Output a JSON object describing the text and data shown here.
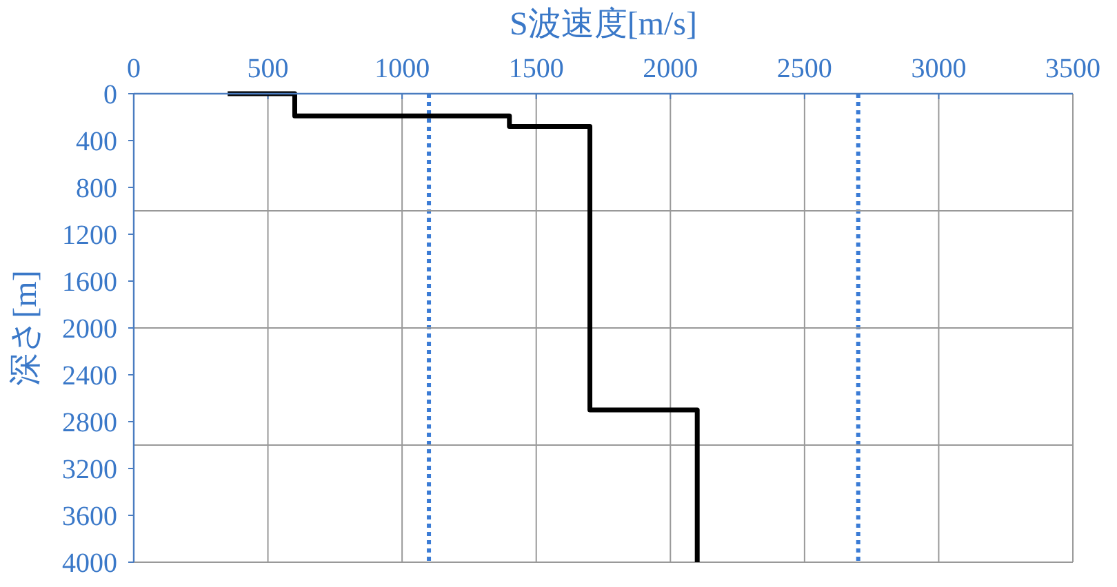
{
  "chart_data": {
    "type": "line",
    "xlabel": "S波速度[m/s]",
    "ylabel": "深さ[m]",
    "xlim": [
      0,
      3500
    ],
    "xticks": [
      0,
      500,
      1000,
      1500,
      2000,
      2500,
      3000,
      3500
    ],
    "ylim": [
      4000,
      0
    ],
    "yticks": [
      0,
      400,
      800,
      1200,
      1600,
      2000,
      2400,
      2800,
      3200,
      3600,
      4000
    ],
    "grid": "x",
    "marker": "none",
    "line_style": "solid",
    "series": [
      {
        "x": [
          350,
          600,
          600,
          1400,
          1400,
          1700,
          1700,
          2100,
          2100
        ],
        "values": [
          0,
          0,
          190,
          190,
          280,
          280,
          2700,
          2700,
          4000
        ],
        "color": "#000000"
      }
    ],
    "ref_lines": [
      {
        "axis": "x",
        "value": 1100,
        "color": "#3a7bd5",
        "line_style": "dotted"
      },
      {
        "axis": "x",
        "value": 2700,
        "color": "#3a7bd5",
        "line_style": "dotted"
      },
      {
        "axis": "y",
        "value": 1000,
        "color": "#999999",
        "line_style": "solid"
      },
      {
        "axis": "y",
        "value": 2000,
        "color": "#999999",
        "line_style": "solid"
      },
      {
        "axis": "y",
        "value": 3000,
        "color": "#999999",
        "line_style": "solid"
      }
    ]
  }
}
